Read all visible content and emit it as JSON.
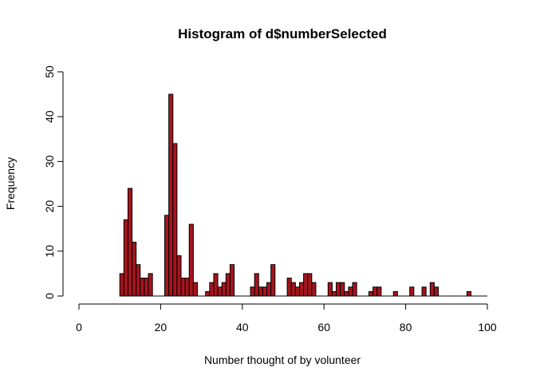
{
  "chart_data": {
    "type": "bar",
    "title": "Histogram of d$numberSelected",
    "xlabel": "Number thought of by volunteer",
    "ylabel": "Frequency",
    "xlim": [
      0,
      100
    ],
    "ylim": [
      0,
      50
    ],
    "x_ticks": [
      "0",
      "20",
      "40",
      "60",
      "80",
      "100"
    ],
    "y_ticks": [
      "0",
      "10",
      "20",
      "30",
      "40",
      "50"
    ],
    "bar_color": "#a5151e",
    "bin_width": 1,
    "bins": [
      {
        "start": 10,
        "value": 5
      },
      {
        "start": 11,
        "value": 17
      },
      {
        "start": 12,
        "value": 24
      },
      {
        "start": 13,
        "value": 12
      },
      {
        "start": 14,
        "value": 7
      },
      {
        "start": 15,
        "value": 4
      },
      {
        "start": 16,
        "value": 4
      },
      {
        "start": 17,
        "value": 5
      },
      {
        "start": 18,
        "value": 0
      },
      {
        "start": 19,
        "value": 0
      },
      {
        "start": 20,
        "value": 0
      },
      {
        "start": 21,
        "value": 18
      },
      {
        "start": 22,
        "value": 45
      },
      {
        "start": 23,
        "value": 34
      },
      {
        "start": 24,
        "value": 9
      },
      {
        "start": 25,
        "value": 4
      },
      {
        "start": 26,
        "value": 4
      },
      {
        "start": 27,
        "value": 16
      },
      {
        "start": 28,
        "value": 3
      },
      {
        "start": 29,
        "value": 0
      },
      {
        "start": 30,
        "value": 0
      },
      {
        "start": 31,
        "value": 1
      },
      {
        "start": 32,
        "value": 3
      },
      {
        "start": 33,
        "value": 5
      },
      {
        "start": 34,
        "value": 2
      },
      {
        "start": 35,
        "value": 3
      },
      {
        "start": 36,
        "value": 5
      },
      {
        "start": 37,
        "value": 7
      },
      {
        "start": 38,
        "value": 0
      },
      {
        "start": 39,
        "value": 0
      },
      {
        "start": 40,
        "value": 0
      },
      {
        "start": 41,
        "value": 0
      },
      {
        "start": 42,
        "value": 2
      },
      {
        "start": 43,
        "value": 5
      },
      {
        "start": 44,
        "value": 2
      },
      {
        "start": 45,
        "value": 2
      },
      {
        "start": 46,
        "value": 3
      },
      {
        "start": 47,
        "value": 7
      },
      {
        "start": 48,
        "value": 0
      },
      {
        "start": 49,
        "value": 0
      },
      {
        "start": 50,
        "value": 0
      },
      {
        "start": 51,
        "value": 4
      },
      {
        "start": 52,
        "value": 3
      },
      {
        "start": 53,
        "value": 2
      },
      {
        "start": 54,
        "value": 3
      },
      {
        "start": 55,
        "value": 5
      },
      {
        "start": 56,
        "value": 5
      },
      {
        "start": 57,
        "value": 3
      },
      {
        "start": 58,
        "value": 0
      },
      {
        "start": 59,
        "value": 0
      },
      {
        "start": 60,
        "value": 0
      },
      {
        "start": 61,
        "value": 3
      },
      {
        "start": 62,
        "value": 1
      },
      {
        "start": 63,
        "value": 3
      },
      {
        "start": 64,
        "value": 3
      },
      {
        "start": 65,
        "value": 1
      },
      {
        "start": 66,
        "value": 2
      },
      {
        "start": 67,
        "value": 3
      },
      {
        "start": 68,
        "value": 0
      },
      {
        "start": 69,
        "value": 0
      },
      {
        "start": 70,
        "value": 0
      },
      {
        "start": 71,
        "value": 1
      },
      {
        "start": 72,
        "value": 2
      },
      {
        "start": 73,
        "value": 2
      },
      {
        "start": 74,
        "value": 0
      },
      {
        "start": 75,
        "value": 0
      },
      {
        "start": 76,
        "value": 0
      },
      {
        "start": 77,
        "value": 1
      },
      {
        "start": 78,
        "value": 0
      },
      {
        "start": 79,
        "value": 0
      },
      {
        "start": 80,
        "value": 0
      },
      {
        "start": 81,
        "value": 2
      },
      {
        "start": 82,
        "value": 0
      },
      {
        "start": 83,
        "value": 0
      },
      {
        "start": 84,
        "value": 2
      },
      {
        "start": 85,
        "value": 0
      },
      {
        "start": 86,
        "value": 3
      },
      {
        "start": 87,
        "value": 2
      },
      {
        "start": 88,
        "value": 0
      },
      {
        "start": 89,
        "value": 0
      },
      {
        "start": 90,
        "value": 0
      },
      {
        "start": 91,
        "value": 0
      },
      {
        "start": 92,
        "value": 0
      },
      {
        "start": 93,
        "value": 0
      },
      {
        "start": 94,
        "value": 0
      },
      {
        "start": 95,
        "value": 1
      },
      {
        "start": 96,
        "value": 0
      },
      {
        "start": 97,
        "value": 0
      },
      {
        "start": 98,
        "value": 0
      },
      {
        "start": 99,
        "value": 0
      }
    ]
  }
}
